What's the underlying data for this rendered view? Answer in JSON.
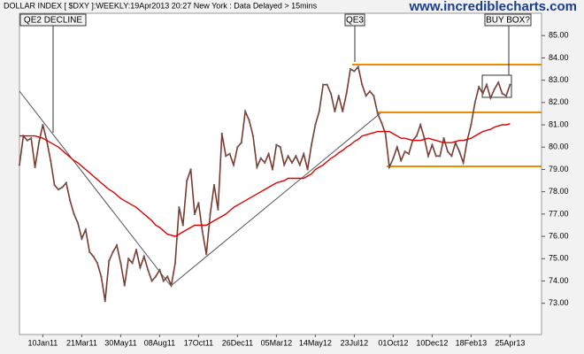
{
  "chart_data": {
    "type": "line",
    "title": "DOLLAR INDEX [ $DXY ]:WEEKLY:19Apr2013 20:27 New York : Data Delayed > 15mins",
    "watermark": "www.incrediblecharts.com",
    "annotations": [
      "QE2 DECLINE",
      "QE3",
      "BUY BOX?"
    ],
    "categories": [
      null,
      null,
      null,
      null,
      null,
      null,
      "10Jan11",
      null,
      null,
      null,
      null,
      null,
      null,
      null,
      null,
      null,
      "21Mar11",
      null,
      null,
      null,
      null,
      null,
      null,
      null,
      null,
      null,
      "30May11",
      null,
      null,
      null,
      null,
      null,
      null,
      null,
      null,
      null,
      "08Aug11",
      null,
      null,
      null,
      null,
      null,
      null,
      null,
      null,
      null,
      "17Oct11",
      null,
      null,
      null,
      null,
      null,
      null,
      null,
      null,
      null,
      "26Dec11",
      null,
      null,
      null,
      null,
      null,
      null,
      null,
      null,
      null,
      "05Mar12",
      null,
      null,
      null,
      null,
      null,
      null,
      null,
      null,
      null,
      "14May12",
      null,
      null,
      null,
      null,
      null,
      null,
      null,
      null,
      null,
      "23Jul12",
      null,
      null,
      null,
      null,
      null,
      null,
      null,
      null,
      null,
      "01Oct12",
      null,
      null,
      null,
      null,
      null,
      null,
      null,
      null,
      null,
      "10Dec12",
      null,
      null,
      null,
      null,
      null,
      null,
      null,
      null,
      null,
      "18Feb13",
      null,
      null,
      null,
      null,
      null,
      null,
      null,
      null,
      null,
      "25Apr13"
    ],
    "series": [
      {
        "color": "#7a3b2e",
        "values": [
          79.2,
          80.5,
          80.3,
          80.4,
          79.1,
          80.2,
          81.0,
          80.3,
          79.4,
          78.3,
          78.1,
          78.2,
          78.4,
          77.6,
          77.0,
          76.6,
          75.9,
          76.3,
          75.3,
          75.1,
          74.8,
          74.2,
          73.1,
          74.9,
          75.3,
          75.6,
          74.8,
          73.8,
          75.0,
          74.8,
          75.4,
          74.6,
          75.1,
          74.5,
          74.0,
          74.2,
          74.5,
          74.0,
          74.2,
          73.8,
          74.8,
          77.3,
          76.5,
          78.5,
          79.0,
          77.0,
          77.5,
          76.2,
          75.2,
          77.0,
          78.3,
          77.2,
          80.6,
          79.6,
          79.7,
          79.2,
          80.0,
          80.2,
          81.6,
          81.2,
          80.5,
          79.1,
          79.5,
          79.3,
          79.7,
          79.0,
          80.1,
          80.0,
          79.2,
          79.6,
          79.3,
          79.6,
          79.2,
          79.7,
          79.0,
          80.1,
          81.0,
          81.6,
          82.8,
          82.8,
          82.4,
          81.6,
          82.3,
          81.6,
          82.4,
          83.5,
          83.4,
          83.6,
          82.8,
          82.3,
          82.5,
          82.3,
          81.5,
          81.1,
          80.6,
          79.1,
          79.5,
          80.0,
          79.4,
          79.8,
          79.7,
          80.3,
          80.5,
          81.0,
          80.4,
          79.6,
          80.1,
          79.6,
          79.6,
          80.4,
          79.8,
          79.6,
          80.2,
          79.8,
          79.3,
          80.3,
          81.0,
          82.0,
          82.7,
          82.4,
          82.8,
          82.2,
          82.6,
          82.9,
          82.4,
          82.3,
          82.8
        ]
      },
      {
        "color": "#dd0000",
        "values": [
          80.5,
          80.5,
          80.5,
          80.5,
          80.5,
          80.45,
          80.4,
          80.3,
          80.2,
          80.1,
          80.0,
          79.85,
          79.7,
          79.55,
          79.4,
          79.3,
          79.15,
          79.0,
          78.85,
          78.7,
          78.55,
          78.4,
          78.25,
          78.1,
          78.0,
          77.85,
          77.7,
          77.6,
          77.5,
          77.4,
          77.3,
          77.15,
          77.0,
          76.85,
          76.7,
          76.5,
          76.4,
          76.25,
          76.1,
          76.05,
          76.0,
          76.1,
          76.2,
          76.3,
          76.4,
          76.5,
          76.5,
          76.5,
          76.5,
          76.6,
          76.7,
          76.8,
          76.9,
          77.0,
          77.15,
          77.3,
          77.4,
          77.5,
          77.6,
          77.7,
          77.8,
          77.9,
          78.0,
          78.1,
          78.2,
          78.3,
          78.4,
          78.45,
          78.5,
          78.6,
          78.6,
          78.6,
          78.6,
          78.6,
          78.7,
          78.8,
          79.0,
          79.1,
          79.2,
          79.35,
          79.5,
          79.6,
          79.75,
          79.85,
          80.0,
          80.1,
          80.25,
          80.35,
          80.5,
          80.55,
          80.6,
          80.65,
          80.7,
          80.7,
          80.7,
          80.7,
          80.6,
          80.5,
          80.4,
          80.4,
          80.35,
          80.3,
          80.3,
          80.3,
          80.35,
          80.4,
          80.35,
          80.3,
          80.25,
          80.2,
          80.2,
          80.2,
          80.25,
          80.3,
          80.3,
          80.35,
          80.4,
          80.5,
          80.6,
          80.7,
          80.75,
          80.8,
          80.9,
          80.95,
          81.0,
          81.0,
          81.05
        ]
      }
    ],
    "ylim": [
      71.6,
      86.0
    ],
    "yticks": [
      {
        "value": 73,
        "label": "73.00"
      },
      {
        "value": 74,
        "label": "74.00"
      },
      {
        "value": 75,
        "label": "75.00"
      },
      {
        "value": 76,
        "label": "76.00"
      },
      {
        "value": 77,
        "label": "77.00"
      },
      {
        "value": 78,
        "label": "78.00"
      },
      {
        "value": 79,
        "label": "79.00"
      },
      {
        "value": 80,
        "label": "80.00"
      },
      {
        "value": 81,
        "label": "81.00"
      },
      {
        "value": 82,
        "label": "82.00"
      },
      {
        "value": 83,
        "label": "83.00"
      },
      {
        "value": 84,
        "label": "84.00"
      },
      {
        "value": 85,
        "label": "85.00"
      }
    ],
    "grid": false
  }
}
